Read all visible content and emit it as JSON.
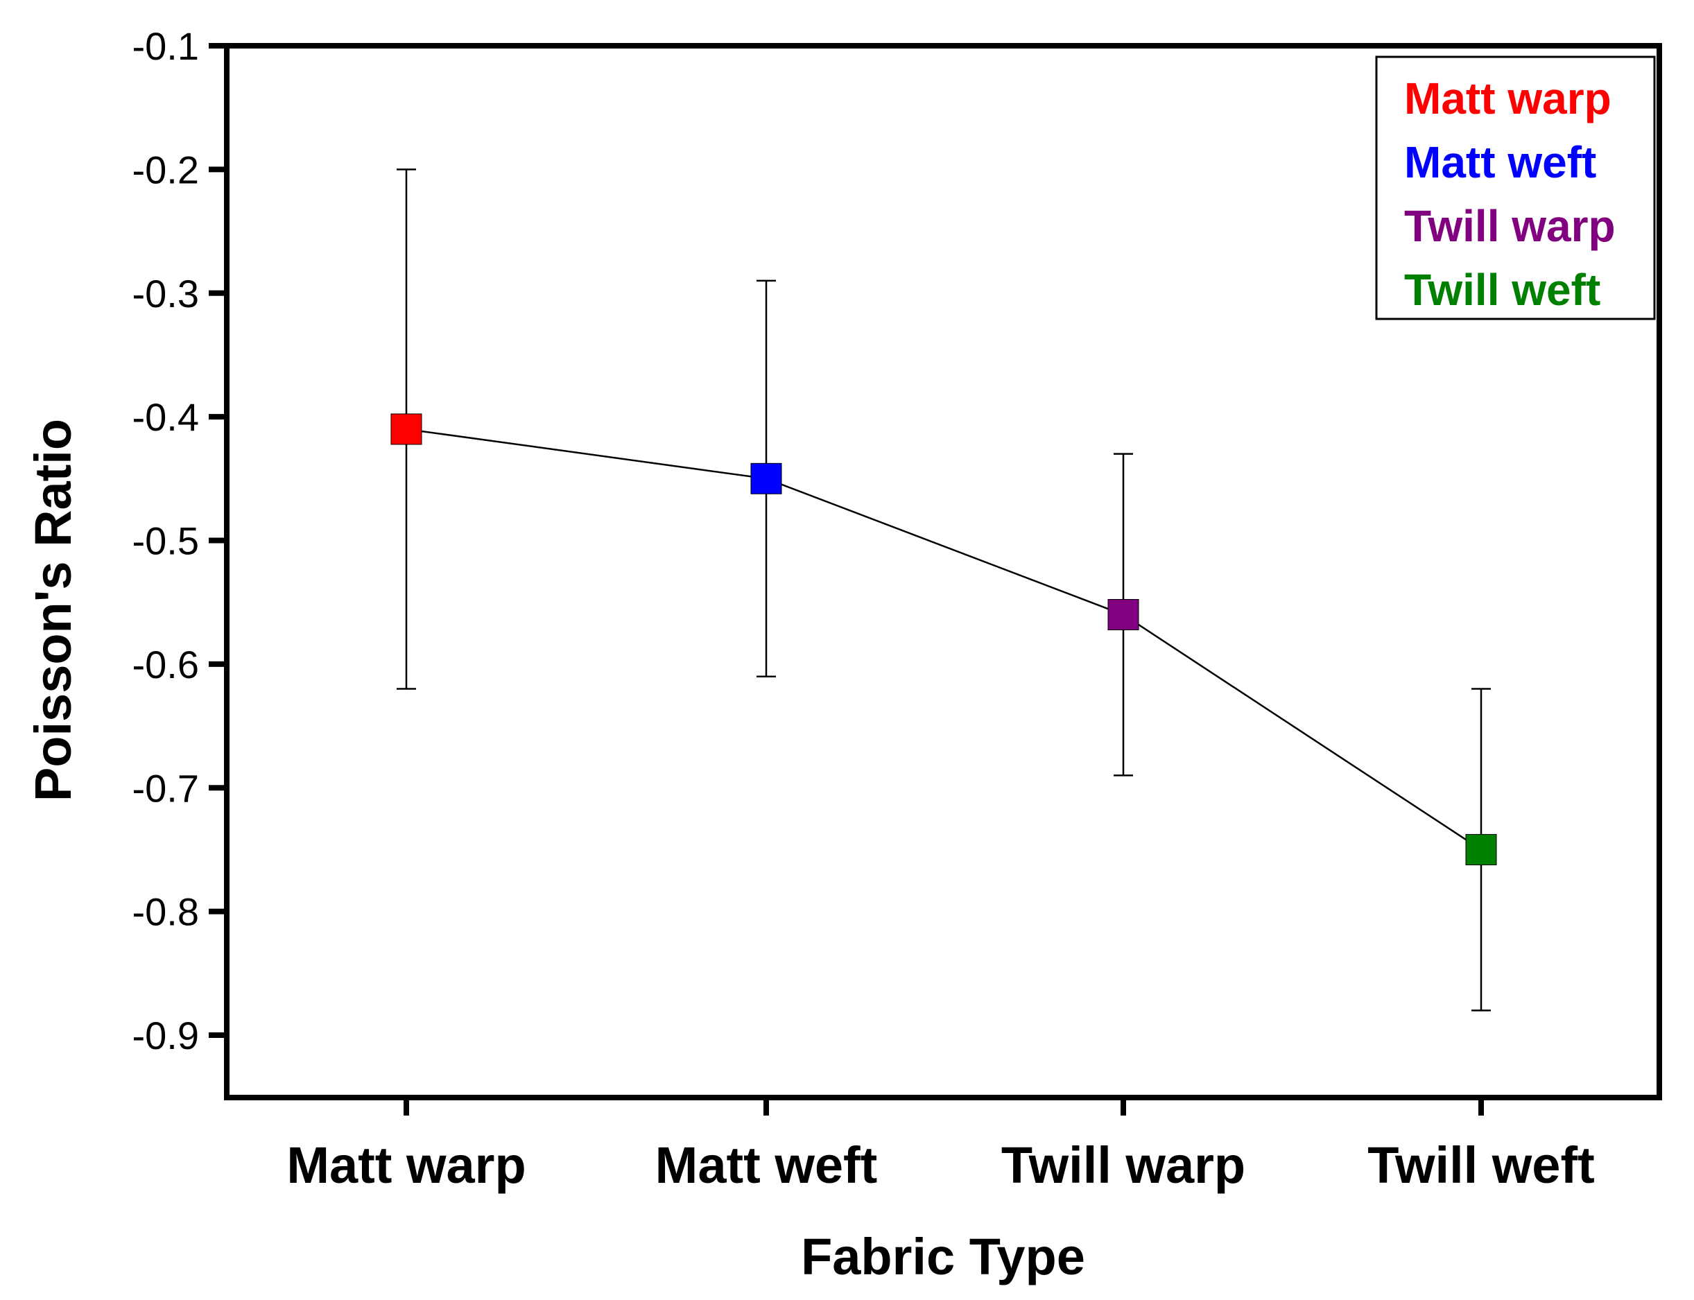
{
  "chart_data": {
    "type": "line",
    "title": "",
    "xlabel": "Fabric Type",
    "ylabel": "Poisson's Ratio",
    "ylim": [
      -0.95,
      -0.1
    ],
    "yticks": [
      -0.1,
      -0.2,
      -0.3,
      -0.4,
      -0.5,
      -0.6,
      -0.7,
      -0.8,
      -0.9
    ],
    "ytick_labels": [
      "-0.1",
      "-0.2",
      "-0.3",
      "-0.4",
      "-0.5",
      "-0.6",
      "-0.7",
      "-0.8",
      "-0.9"
    ],
    "categories": [
      "Matt warp",
      "Matt weft",
      "Twill warp",
      "Twill weft"
    ],
    "values": [
      -0.41,
      -0.45,
      -0.56,
      -0.75
    ],
    "error_high": [
      -0.2,
      -0.29,
      -0.43,
      -0.62
    ],
    "error_low": [
      -0.62,
      -0.61,
      -0.69,
      -0.88
    ],
    "colors": [
      "#ff0000",
      "#0000ff",
      "#800080",
      "#008000"
    ],
    "grid": false,
    "legend": {
      "position": "top-right",
      "entries": [
        "Matt warp",
        "Matt weft",
        "Twill warp",
        "Twill weft"
      ]
    }
  }
}
